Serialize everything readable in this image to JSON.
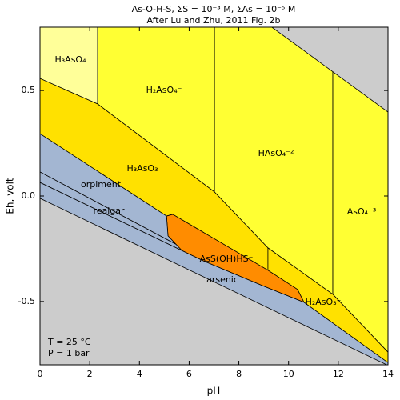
{
  "chart_data": {
    "type": "eh-ph",
    "title": "As-O-H-S,  ΣS = 10⁻³ M, ΣAs = 10⁻⁵ M",
    "subtitle": "After Lu and Zhu, 2011 Fig. 2b",
    "x_label": "pH",
    "y_label": "Eh, volt",
    "xlim": [
      0,
      14
    ],
    "ylim": [
      -0.8,
      0.8
    ],
    "xticks": [
      0,
      2,
      4,
      6,
      8,
      10,
      12,
      14
    ],
    "yticks": [
      -0.5,
      {
        "value": 0,
        "label": "0.0"
      },
      0.5
    ],
    "background_color": "#cccccc",
    "annotations": [
      "T = 25 °C",
      "P = 1 bar"
    ],
    "regions": [
      {
        "name": "H₃AsO₄",
        "color": "#ffff99",
        "x": [
          0,
          2.32,
          2.32,
          0
        ],
        "y": [
          0.8,
          0.8,
          0.436,
          0.557
        ]
      },
      {
        "name": "H₂AsO₄⁻",
        "color": "#ffff33",
        "x": [
          2.32,
          7.02,
          7.02,
          2.32
        ],
        "y": [
          0.8,
          0.8,
          0.019,
          0.436
        ]
      },
      {
        "name": "HAsO₄⁻²",
        "color": "#ffff33",
        "x": [
          7.02,
          9.33,
          11.78,
          11.78,
          9.17,
          7.02
        ],
        "y": [
          0.8,
          0.8,
          0.589,
          -0.466,
          -0.246,
          0.019
        ]
      },
      {
        "name": "AsO₄⁻³",
        "color": "#ffff33",
        "x": [
          11.78,
          14,
          14,
          11.78
        ],
        "y": [
          0.589,
          0.398,
          -0.74,
          -0.466
        ]
      },
      {
        "name": "H₃AsO₃",
        "color": "#ffe100",
        "x": [
          0,
          2.32,
          7.02,
          9.17,
          9.17,
          5.34,
          5.09,
          0
        ],
        "y": [
          0.557,
          0.436,
          0.019,
          -0.246,
          -0.352,
          -0.087,
          -0.095,
          0.295
        ]
      },
      {
        "name": "H₂AsO₃⁻",
        "color": "#ffe100",
        "x": [
          9.17,
          11.78,
          14,
          14,
          10.62,
          10.36,
          9.17
        ],
        "y": [
          -0.246,
          -0.466,
          -0.74,
          -0.79,
          -0.504,
          -0.443,
          -0.352
        ]
      },
      {
        "name": "AsS(OH)HS⁻",
        "color": "#ff8c00",
        "x": [
          5.09,
          5.34,
          9.17,
          10.36,
          10.62,
          9.01,
          6.6,
          5.79,
          5.47,
          5.15
        ],
        "y": [
          -0.095,
          -0.087,
          -0.352,
          -0.443,
          -0.504,
          -0.428,
          -0.309,
          -0.269,
          -0.229,
          -0.189
        ]
      },
      {
        "name": "orpiment",
        "color": "#a3b6d2",
        "x": [
          0,
          5.09,
          5.15,
          5.47,
          0
        ],
        "y": [
          0.295,
          -0.095,
          -0.189,
          -0.229,
          0.114
        ]
      },
      {
        "name": "realgar",
        "color": "#a3b6d2",
        "x": [
          0,
          5.47,
          5.79,
          6.6,
          0
        ],
        "y": [
          0.114,
          -0.229,
          -0.269,
          -0.309,
          0.064
        ]
      },
      {
        "name": "arsenic",
        "color": "#a3b6d2",
        "x": [
          0,
          6.6,
          9.01,
          10.62,
          14,
          14,
          0
        ],
        "y": [
          0.064,
          -0.309,
          -0.428,
          -0.504,
          -0.79,
          -0.803,
          -0.011
        ]
      }
    ]
  }
}
